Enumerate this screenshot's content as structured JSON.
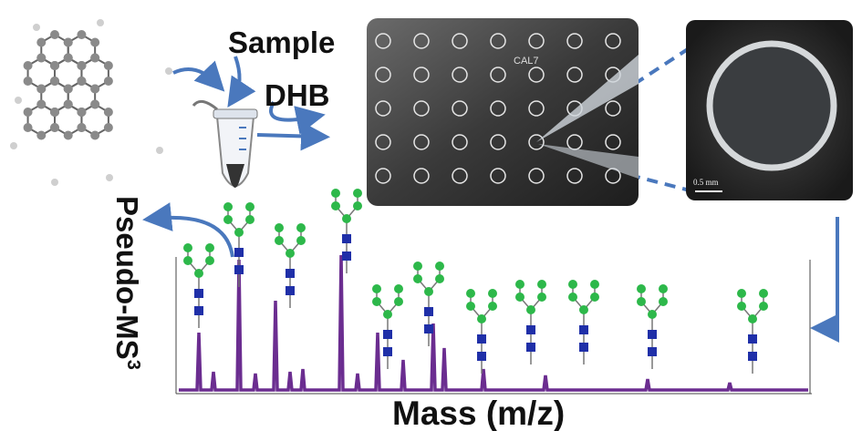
{
  "labels": {
    "sample": "Sample",
    "reagent": "DHB",
    "plate_label": "CAL7",
    "scale_bar": "0.5 mm",
    "y_axis": "Pseudo-MS",
    "y_axis_superscript": "3",
    "x_axis": "Mass (m/z)"
  }
}
